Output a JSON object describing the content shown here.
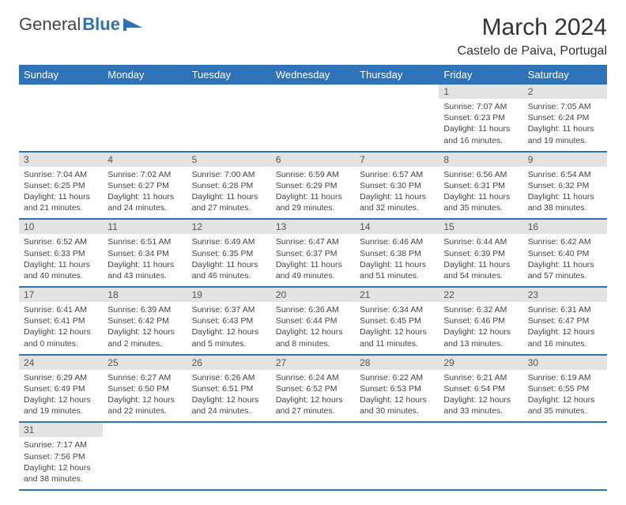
{
  "logo": {
    "part1": "General",
    "part2": "Blue"
  },
  "title": "March 2024",
  "location": "Castelo de Paiva, Portugal",
  "colors": {
    "header_bg": "#2e73b8",
    "header_text": "#ffffff",
    "daynum_bg": "#e3e3e3",
    "row_divider": "#2e73b8",
    "text": "#444444"
  },
  "weekdays": [
    "Sunday",
    "Monday",
    "Tuesday",
    "Wednesday",
    "Thursday",
    "Friday",
    "Saturday"
  ],
  "weeks": [
    [
      null,
      null,
      null,
      null,
      null,
      {
        "n": "1",
        "sunrise": "7:07 AM",
        "sunset": "6:23 PM",
        "day_h": "11",
        "day_m": "16"
      },
      {
        "n": "2",
        "sunrise": "7:05 AM",
        "sunset": "6:24 PM",
        "day_h": "11",
        "day_m": "19"
      }
    ],
    [
      {
        "n": "3",
        "sunrise": "7:04 AM",
        "sunset": "6:25 PM",
        "day_h": "11",
        "day_m": "21"
      },
      {
        "n": "4",
        "sunrise": "7:02 AM",
        "sunset": "6:27 PM",
        "day_h": "11",
        "day_m": "24"
      },
      {
        "n": "5",
        "sunrise": "7:00 AM",
        "sunset": "6:28 PM",
        "day_h": "11",
        "day_m": "27"
      },
      {
        "n": "6",
        "sunrise": "6:59 AM",
        "sunset": "6:29 PM",
        "day_h": "11",
        "day_m": "29"
      },
      {
        "n": "7",
        "sunrise": "6:57 AM",
        "sunset": "6:30 PM",
        "day_h": "11",
        "day_m": "32"
      },
      {
        "n": "8",
        "sunrise": "6:56 AM",
        "sunset": "6:31 PM",
        "day_h": "11",
        "day_m": "35"
      },
      {
        "n": "9",
        "sunrise": "6:54 AM",
        "sunset": "6:32 PM",
        "day_h": "11",
        "day_m": "38"
      }
    ],
    [
      {
        "n": "10",
        "sunrise": "6:52 AM",
        "sunset": "6:33 PM",
        "day_h": "11",
        "day_m": "40"
      },
      {
        "n": "11",
        "sunrise": "6:51 AM",
        "sunset": "6:34 PM",
        "day_h": "11",
        "day_m": "43"
      },
      {
        "n": "12",
        "sunrise": "6:49 AM",
        "sunset": "6:35 PM",
        "day_h": "11",
        "day_m": "46"
      },
      {
        "n": "13",
        "sunrise": "6:47 AM",
        "sunset": "6:37 PM",
        "day_h": "11",
        "day_m": "49"
      },
      {
        "n": "14",
        "sunrise": "6:46 AM",
        "sunset": "6:38 PM",
        "day_h": "11",
        "day_m": "51"
      },
      {
        "n": "15",
        "sunrise": "6:44 AM",
        "sunset": "6:39 PM",
        "day_h": "11",
        "day_m": "54"
      },
      {
        "n": "16",
        "sunrise": "6:42 AM",
        "sunset": "6:40 PM",
        "day_h": "11",
        "day_m": "57"
      }
    ],
    [
      {
        "n": "17",
        "sunrise": "6:41 AM",
        "sunset": "6:41 PM",
        "day_h": "12",
        "day_m": "0"
      },
      {
        "n": "18",
        "sunrise": "6:39 AM",
        "sunset": "6:42 PM",
        "day_h": "12",
        "day_m": "2"
      },
      {
        "n": "19",
        "sunrise": "6:37 AM",
        "sunset": "6:43 PM",
        "day_h": "12",
        "day_m": "5"
      },
      {
        "n": "20",
        "sunrise": "6:36 AM",
        "sunset": "6:44 PM",
        "day_h": "12",
        "day_m": "8"
      },
      {
        "n": "21",
        "sunrise": "6:34 AM",
        "sunset": "6:45 PM",
        "day_h": "12",
        "day_m": "11"
      },
      {
        "n": "22",
        "sunrise": "6:32 AM",
        "sunset": "6:46 PM",
        "day_h": "12",
        "day_m": "13"
      },
      {
        "n": "23",
        "sunrise": "6:31 AM",
        "sunset": "6:47 PM",
        "day_h": "12",
        "day_m": "16"
      }
    ],
    [
      {
        "n": "24",
        "sunrise": "6:29 AM",
        "sunset": "6:49 PM",
        "day_h": "12",
        "day_m": "19"
      },
      {
        "n": "25",
        "sunrise": "6:27 AM",
        "sunset": "6:50 PM",
        "day_h": "12",
        "day_m": "22"
      },
      {
        "n": "26",
        "sunrise": "6:26 AM",
        "sunset": "6:51 PM",
        "day_h": "12",
        "day_m": "24"
      },
      {
        "n": "27",
        "sunrise": "6:24 AM",
        "sunset": "6:52 PM",
        "day_h": "12",
        "day_m": "27"
      },
      {
        "n": "28",
        "sunrise": "6:22 AM",
        "sunset": "6:53 PM",
        "day_h": "12",
        "day_m": "30"
      },
      {
        "n": "29",
        "sunrise": "6:21 AM",
        "sunset": "6:54 PM",
        "day_h": "12",
        "day_m": "33"
      },
      {
        "n": "30",
        "sunrise": "6:19 AM",
        "sunset": "6:55 PM",
        "day_h": "12",
        "day_m": "35"
      }
    ],
    [
      {
        "n": "31",
        "sunrise": "7:17 AM",
        "sunset": "7:56 PM",
        "day_h": "12",
        "day_m": "38"
      },
      null,
      null,
      null,
      null,
      null,
      null
    ]
  ],
  "labels": {
    "sunrise": "Sunrise: ",
    "sunset": "Sunset: ",
    "daylight_prefix": "Daylight: ",
    "hours": " hours",
    "and": "and ",
    "minutes": " minutes."
  }
}
